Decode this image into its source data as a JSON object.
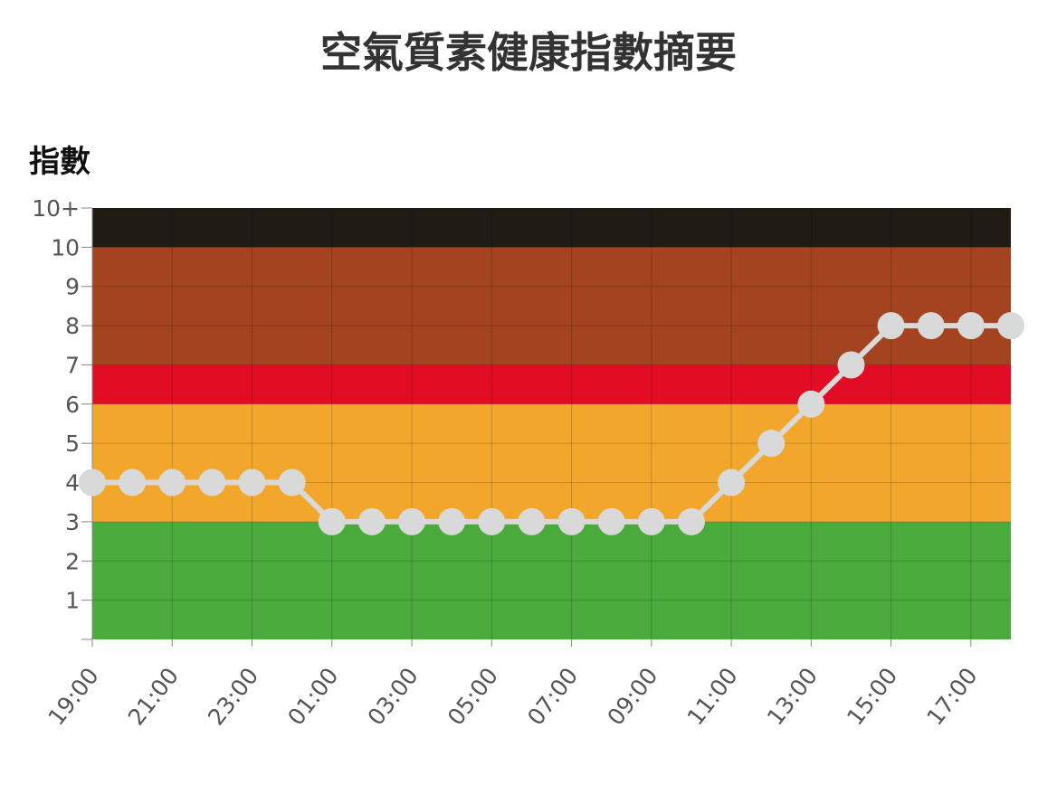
{
  "chart_data": {
    "type": "line",
    "title": "空氣質素健康指數摘要",
    "ylabel": "指數",
    "xlabel": "",
    "x": [
      "19:00",
      "20:00",
      "21:00",
      "22:00",
      "23:00",
      "00:00",
      "01:00",
      "02:00",
      "03:00",
      "04:00",
      "05:00",
      "06:00",
      "07:00",
      "08:00",
      "09:00",
      "10:00",
      "11:00",
      "12:00",
      "13:00",
      "14:00",
      "15:00",
      "16:00",
      "17:00",
      "18:00"
    ],
    "x_tick_labels": [
      "19:00",
      "21:00",
      "23:00",
      "01:00",
      "03:00",
      "05:00",
      "07:00",
      "09:00",
      "11:00",
      "13:00",
      "15:00",
      "17:00"
    ],
    "series": [
      {
        "values": [
          4,
          4,
          4,
          4,
          4,
          4,
          3,
          3,
          3,
          3,
          3,
          3,
          3,
          3,
          3,
          3,
          4,
          5,
          6,
          7,
          8,
          8,
          8,
          8
        ]
      }
    ],
    "y_ticks": [
      "1",
      "2",
      "3",
      "4",
      "5",
      "6",
      "7",
      "8",
      "9",
      "10",
      "10+"
    ],
    "ylim": [
      0,
      11
    ],
    "grid": true,
    "bands": [
      {
        "from": 0,
        "to": 3,
        "color": "#4aab3c"
      },
      {
        "from": 3,
        "to": 6,
        "color": "#f2a72c"
      },
      {
        "from": 6,
        "to": 7,
        "color": "#e20c24"
      },
      {
        "from": 7,
        "to": 10,
        "color": "#a3431f"
      },
      {
        "from": 10,
        "to": 11,
        "color": "#211b16"
      }
    ],
    "line_color": "#d9d9d9"
  }
}
